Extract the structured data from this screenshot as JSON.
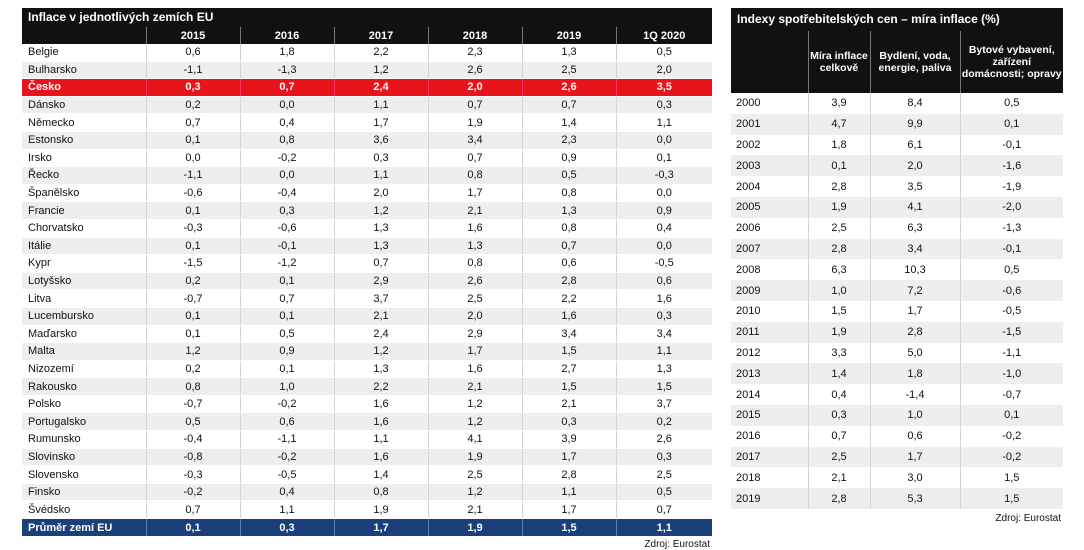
{
  "left": {
    "title": "Inflace v jednotlivých zemích EU",
    "columns": [
      "",
      "2015",
      "2016",
      "2017",
      "2018",
      "2019",
      "1Q 2020"
    ],
    "rows": [
      [
        "Belgie",
        "0,6",
        "1,8",
        "2,2",
        "2,3",
        "1,3",
        "0,5"
      ],
      [
        "Bulharsko",
        "-1,1",
        "-1,3",
        "1,2",
        "2,6",
        "2,5",
        "2,0"
      ],
      [
        "Česko",
        "0,3",
        "0,7",
        "2,4",
        "2,0",
        "2,6",
        "3,5"
      ],
      [
        "Dánsko",
        "0,2",
        "0,0",
        "1,1",
        "0,7",
        "0,7",
        "0,3"
      ],
      [
        "Německo",
        "0,7",
        "0,4",
        "1,7",
        "1,9",
        "1,4",
        "1,1"
      ],
      [
        "Estonsko",
        "0,1",
        "0,8",
        "3,6",
        "3,4",
        "2,3",
        "0,0"
      ],
      [
        "Irsko",
        "0,0",
        "-0,2",
        "0,3",
        "0,7",
        "0,9",
        "0,1"
      ],
      [
        "Řecko",
        "-1,1",
        "0,0",
        "1,1",
        "0,8",
        "0,5",
        "-0,3"
      ],
      [
        "Španělsko",
        "-0,6",
        "-0,4",
        "2,0",
        "1,7",
        "0,8",
        "0,0"
      ],
      [
        "Francie",
        "0,1",
        "0,3",
        "1,2",
        "2,1",
        "1,3",
        "0,9"
      ],
      [
        "Chorvatsko",
        "-0,3",
        "-0,6",
        "1,3",
        "1,6",
        "0,8",
        "0,4"
      ],
      [
        "Itálie",
        "0,1",
        "-0,1",
        "1,3",
        "1,3",
        "0,7",
        "0,0"
      ],
      [
        "Kypr",
        "-1,5",
        "-1,2",
        "0,7",
        "0,8",
        "0,6",
        "-0,5"
      ],
      [
        "Lotyšsko",
        "0,2",
        "0,1",
        "2,9",
        "2,6",
        "2,8",
        "0,6"
      ],
      [
        "Litva",
        "-0,7",
        "0,7",
        "3,7",
        "2,5",
        "2,2",
        "1,6"
      ],
      [
        "Lucembursko",
        "0,1",
        "0,1",
        "2,1",
        "2,0",
        "1,6",
        "0,3"
      ],
      [
        "Maďarsko",
        "0,1",
        "0,5",
        "2,4",
        "2,9",
        "3,4",
        "3,4"
      ],
      [
        "Malta",
        "1,2",
        "0,9",
        "1,2",
        "1,7",
        "1,5",
        "1,1"
      ],
      [
        "Nizozemí",
        "0,2",
        "0,1",
        "1,3",
        "1,6",
        "2,7",
        "1,3"
      ],
      [
        "Rakousko",
        "0,8",
        "1,0",
        "2,2",
        "2,1",
        "1,5",
        "1,5"
      ],
      [
        "Polsko",
        "-0,7",
        "-0,2",
        "1,6",
        "1,2",
        "2,1",
        "3,7"
      ],
      [
        "Portugalsko",
        "0,5",
        "0,6",
        "1,6",
        "1,2",
        "0,3",
        "0,2"
      ],
      [
        "Rumunsko",
        "-0,4",
        "-1,1",
        "1,1",
        "4,1",
        "3,9",
        "2,6"
      ],
      [
        "Slovinsko",
        "-0,8",
        "-0,2",
        "1,6",
        "1,9",
        "1,7",
        "0,3"
      ],
      [
        "Slovensko",
        "-0,3",
        "-0,5",
        "1,4",
        "2,5",
        "2,8",
        "2,5"
      ],
      [
        "Finsko",
        "-0,2",
        "0,4",
        "0,8",
        "1,2",
        "1,1",
        "0,5"
      ],
      [
        "Švédsko",
        "0,7",
        "1,1",
        "1,9",
        "2,1",
        "1,7",
        "0,7"
      ]
    ],
    "highlight_row": "Česko",
    "footer": [
      "Průměr zemí EU",
      "0,1",
      "0,3",
      "1,7",
      "1,9",
      "1,5",
      "1,1"
    ],
    "source": "Zdroj: Eurostat"
  },
  "right": {
    "title": "Indexy spotřebitelských cen – míra inflace (%)",
    "columns": [
      "",
      "Míra inflace celkově",
      "Bydlení, voda, energie, paliva",
      "Bytové vybavení, zařízení domácnosti; opravy"
    ],
    "rows": [
      [
        "2000",
        "3,9",
        "8,4",
        "0,5"
      ],
      [
        "2001",
        "4,7",
        "9,9",
        "0,1"
      ],
      [
        "2002",
        "1,8",
        "6,1",
        "-0,1"
      ],
      [
        "2003",
        "0,1",
        "2,0",
        "-1,6"
      ],
      [
        "2004",
        "2,8",
        "3,5",
        "-1,9"
      ],
      [
        "2005",
        "1,9",
        "4,1",
        "-2,0"
      ],
      [
        "2006",
        "2,5",
        "6,3",
        "-1,3"
      ],
      [
        "2007",
        "2,8",
        "3,4",
        "-0,1"
      ],
      [
        "2008",
        "6,3",
        "10,3",
        "0,5"
      ],
      [
        "2009",
        "1,0",
        "7,2",
        "-0,6"
      ],
      [
        "2010",
        "1,5",
        "1,7",
        "-0,5"
      ],
      [
        "2011",
        "1,9",
        "2,8",
        "-1,5"
      ],
      [
        "2012",
        "3,3",
        "5,0",
        "-1,1"
      ],
      [
        "2013",
        "1,4",
        "1,8",
        "-1,0"
      ],
      [
        "2014",
        "0,4",
        "-1,4",
        "-0,7"
      ],
      [
        "2015",
        "0,3",
        "1,0",
        "0,1"
      ],
      [
        "2016",
        "0,7",
        "0,6",
        "-0,2"
      ],
      [
        "2017",
        "2,5",
        "1,7",
        "-0,2"
      ],
      [
        "2018",
        "2,1",
        "3,0",
        "1,5"
      ],
      [
        "2019",
        "2,8",
        "5,3",
        "1,5"
      ]
    ],
    "source": "Zdroj: Eurostat"
  }
}
